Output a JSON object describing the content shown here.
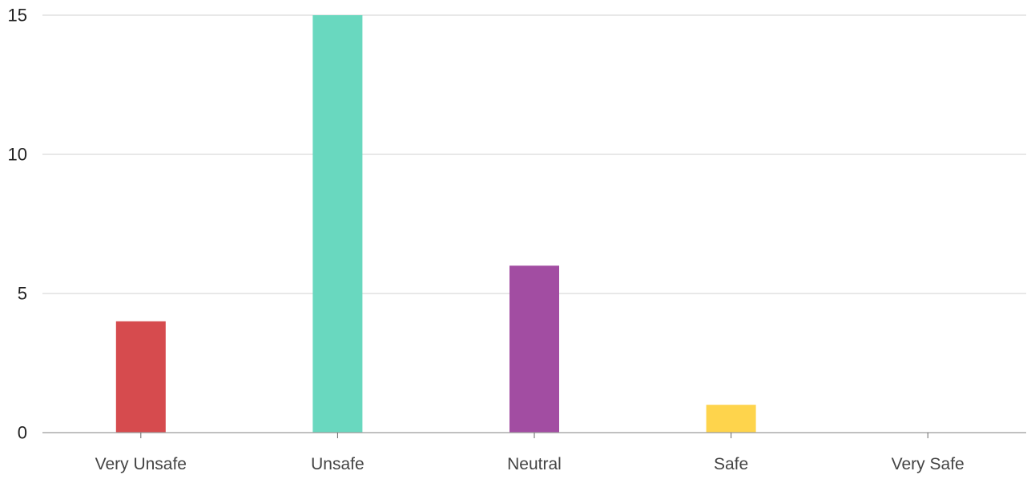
{
  "chart_data": {
    "type": "bar",
    "categories": [
      "Very Unsafe",
      "Unsafe",
      "Neutral",
      "Safe",
      "Very Safe"
    ],
    "values": [
      4,
      15,
      6,
      1,
      0
    ],
    "colors": [
      "#d64b4e",
      "#69d8bf",
      "#a24da2",
      "#fed44c",
      "#cccccc"
    ],
    "ylim": [
      0,
      15
    ],
    "yticks": [
      0,
      5,
      10,
      15
    ],
    "grid": true,
    "title": "",
    "xlabel": "",
    "ylabel": ""
  }
}
